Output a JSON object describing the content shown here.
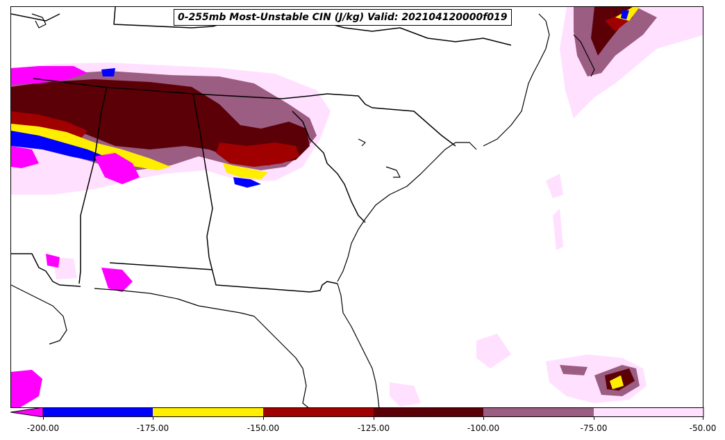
{
  "title": "0-255mb Most-Unstable CIN (J/kg) Valid: 202104120000f019",
  "colorbar": {
    "levels": [
      "-200.00",
      "-175.00",
      "-150.00",
      "-125.00",
      "-100.00",
      "-75.00",
      "-50.00"
    ],
    "colors": [
      "#ff00ff",
      "#0000ff",
      "#ffee00",
      "#a00000",
      "#5c0008",
      "#9b5d82",
      "#ffe0ff"
    ]
  }
}
